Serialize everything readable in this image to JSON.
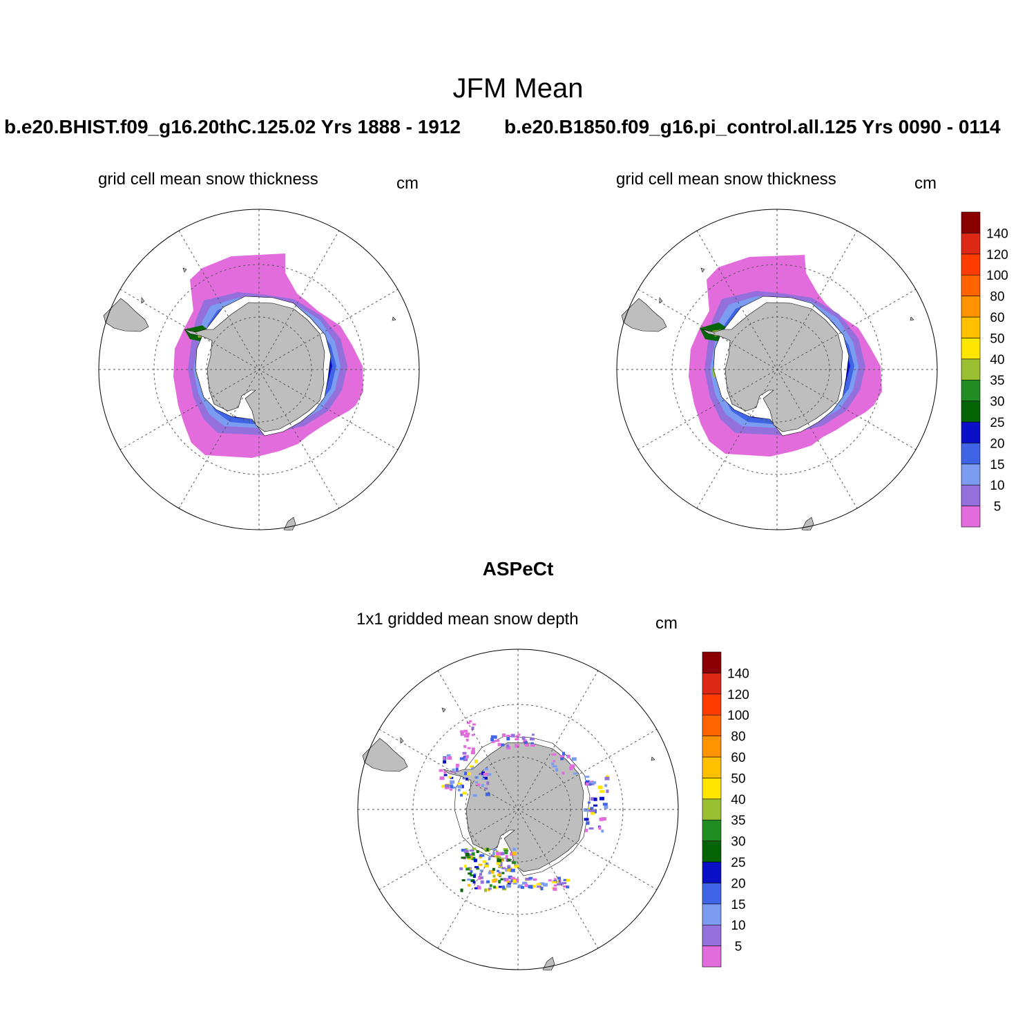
{
  "title": "JFM Mean",
  "panels": {
    "left": {
      "case": "b.e20.BHIST.f09_g16.20thC.125.02  Yrs 1888 - 1912",
      "label": "grid cell mean snow thickness",
      "units": "cm"
    },
    "right": {
      "case": "b.e20.B1850.f09_g16.pi_control.all.125  Yrs 0090 - 0114",
      "label": "grid cell mean snow thickness",
      "units": "cm"
    },
    "bottom": {
      "case": "ASPeCt",
      "label": "1x1 gridded mean snow depth",
      "units": "cm"
    }
  },
  "colorbar": {
    "levels": [
      "5",
      "10",
      "15",
      "20",
      "25",
      "30",
      "35",
      "40",
      "50",
      "60",
      "80",
      "100",
      "120",
      "140"
    ],
    "colors": [
      "#e36cdd",
      "#9370db",
      "#7b9cf0",
      "#3f64e6",
      "#0a10c8",
      "#056405",
      "#218c21",
      "#9ac032",
      "#ffe600",
      "#ffc000",
      "#ff9400",
      "#ff6400",
      "#ff3c00",
      "#dc2814",
      "#8b0000"
    ]
  },
  "colors": {
    "land": "#bebebe",
    "grid": "#555555",
    "ice_edge": "#e36cdd"
  }
}
